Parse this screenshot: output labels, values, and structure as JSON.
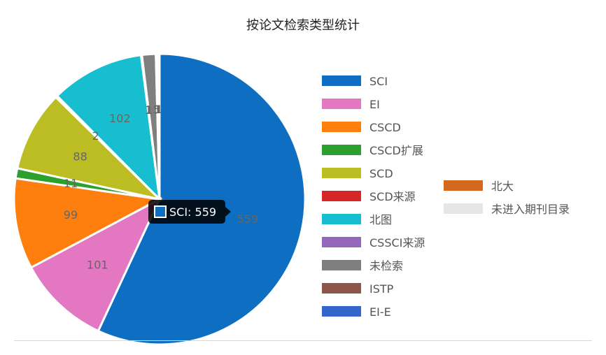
{
  "chart_data": {
    "type": "pie",
    "title": "按论文检索类型统计",
    "series": [
      {
        "name": "SCI",
        "value": 559,
        "color": "#0e6fc2"
      },
      {
        "name": "EI",
        "value": 101,
        "color": "#e377c2"
      },
      {
        "name": "CSCD",
        "value": 99,
        "color": "#ff7f0e"
      },
      {
        "name": "CSCD扩展",
        "value": 11,
        "color": "#2ca02c"
      },
      {
        "name": "SCD",
        "value": 88,
        "color": "#bcbd22"
      },
      {
        "name": "SCD来源",
        "value": 2,
        "color": "#d62728"
      },
      {
        "name": "北图",
        "value": 102,
        "color": "#17becf"
      },
      {
        "name": "CSSCI来源",
        "value": 1,
        "color": "#9467bd"
      },
      {
        "name": "未检索",
        "value": 15,
        "color": "#7f7f7f"
      },
      {
        "name": "ISTP",
        "value": 1,
        "color": "#8c564b"
      },
      {
        "name": "EI-E",
        "value": 1,
        "color": "#3366cc"
      },
      {
        "name": "北大",
        "value": 1,
        "color": "#d2691e"
      },
      {
        "name": "未进入期刊目录",
        "value": 1,
        "color": "#e6e6e6"
      }
    ],
    "legend": "right",
    "tooltip": {
      "text": "SCI: 559",
      "color": "#0e6fc2"
    }
  }
}
